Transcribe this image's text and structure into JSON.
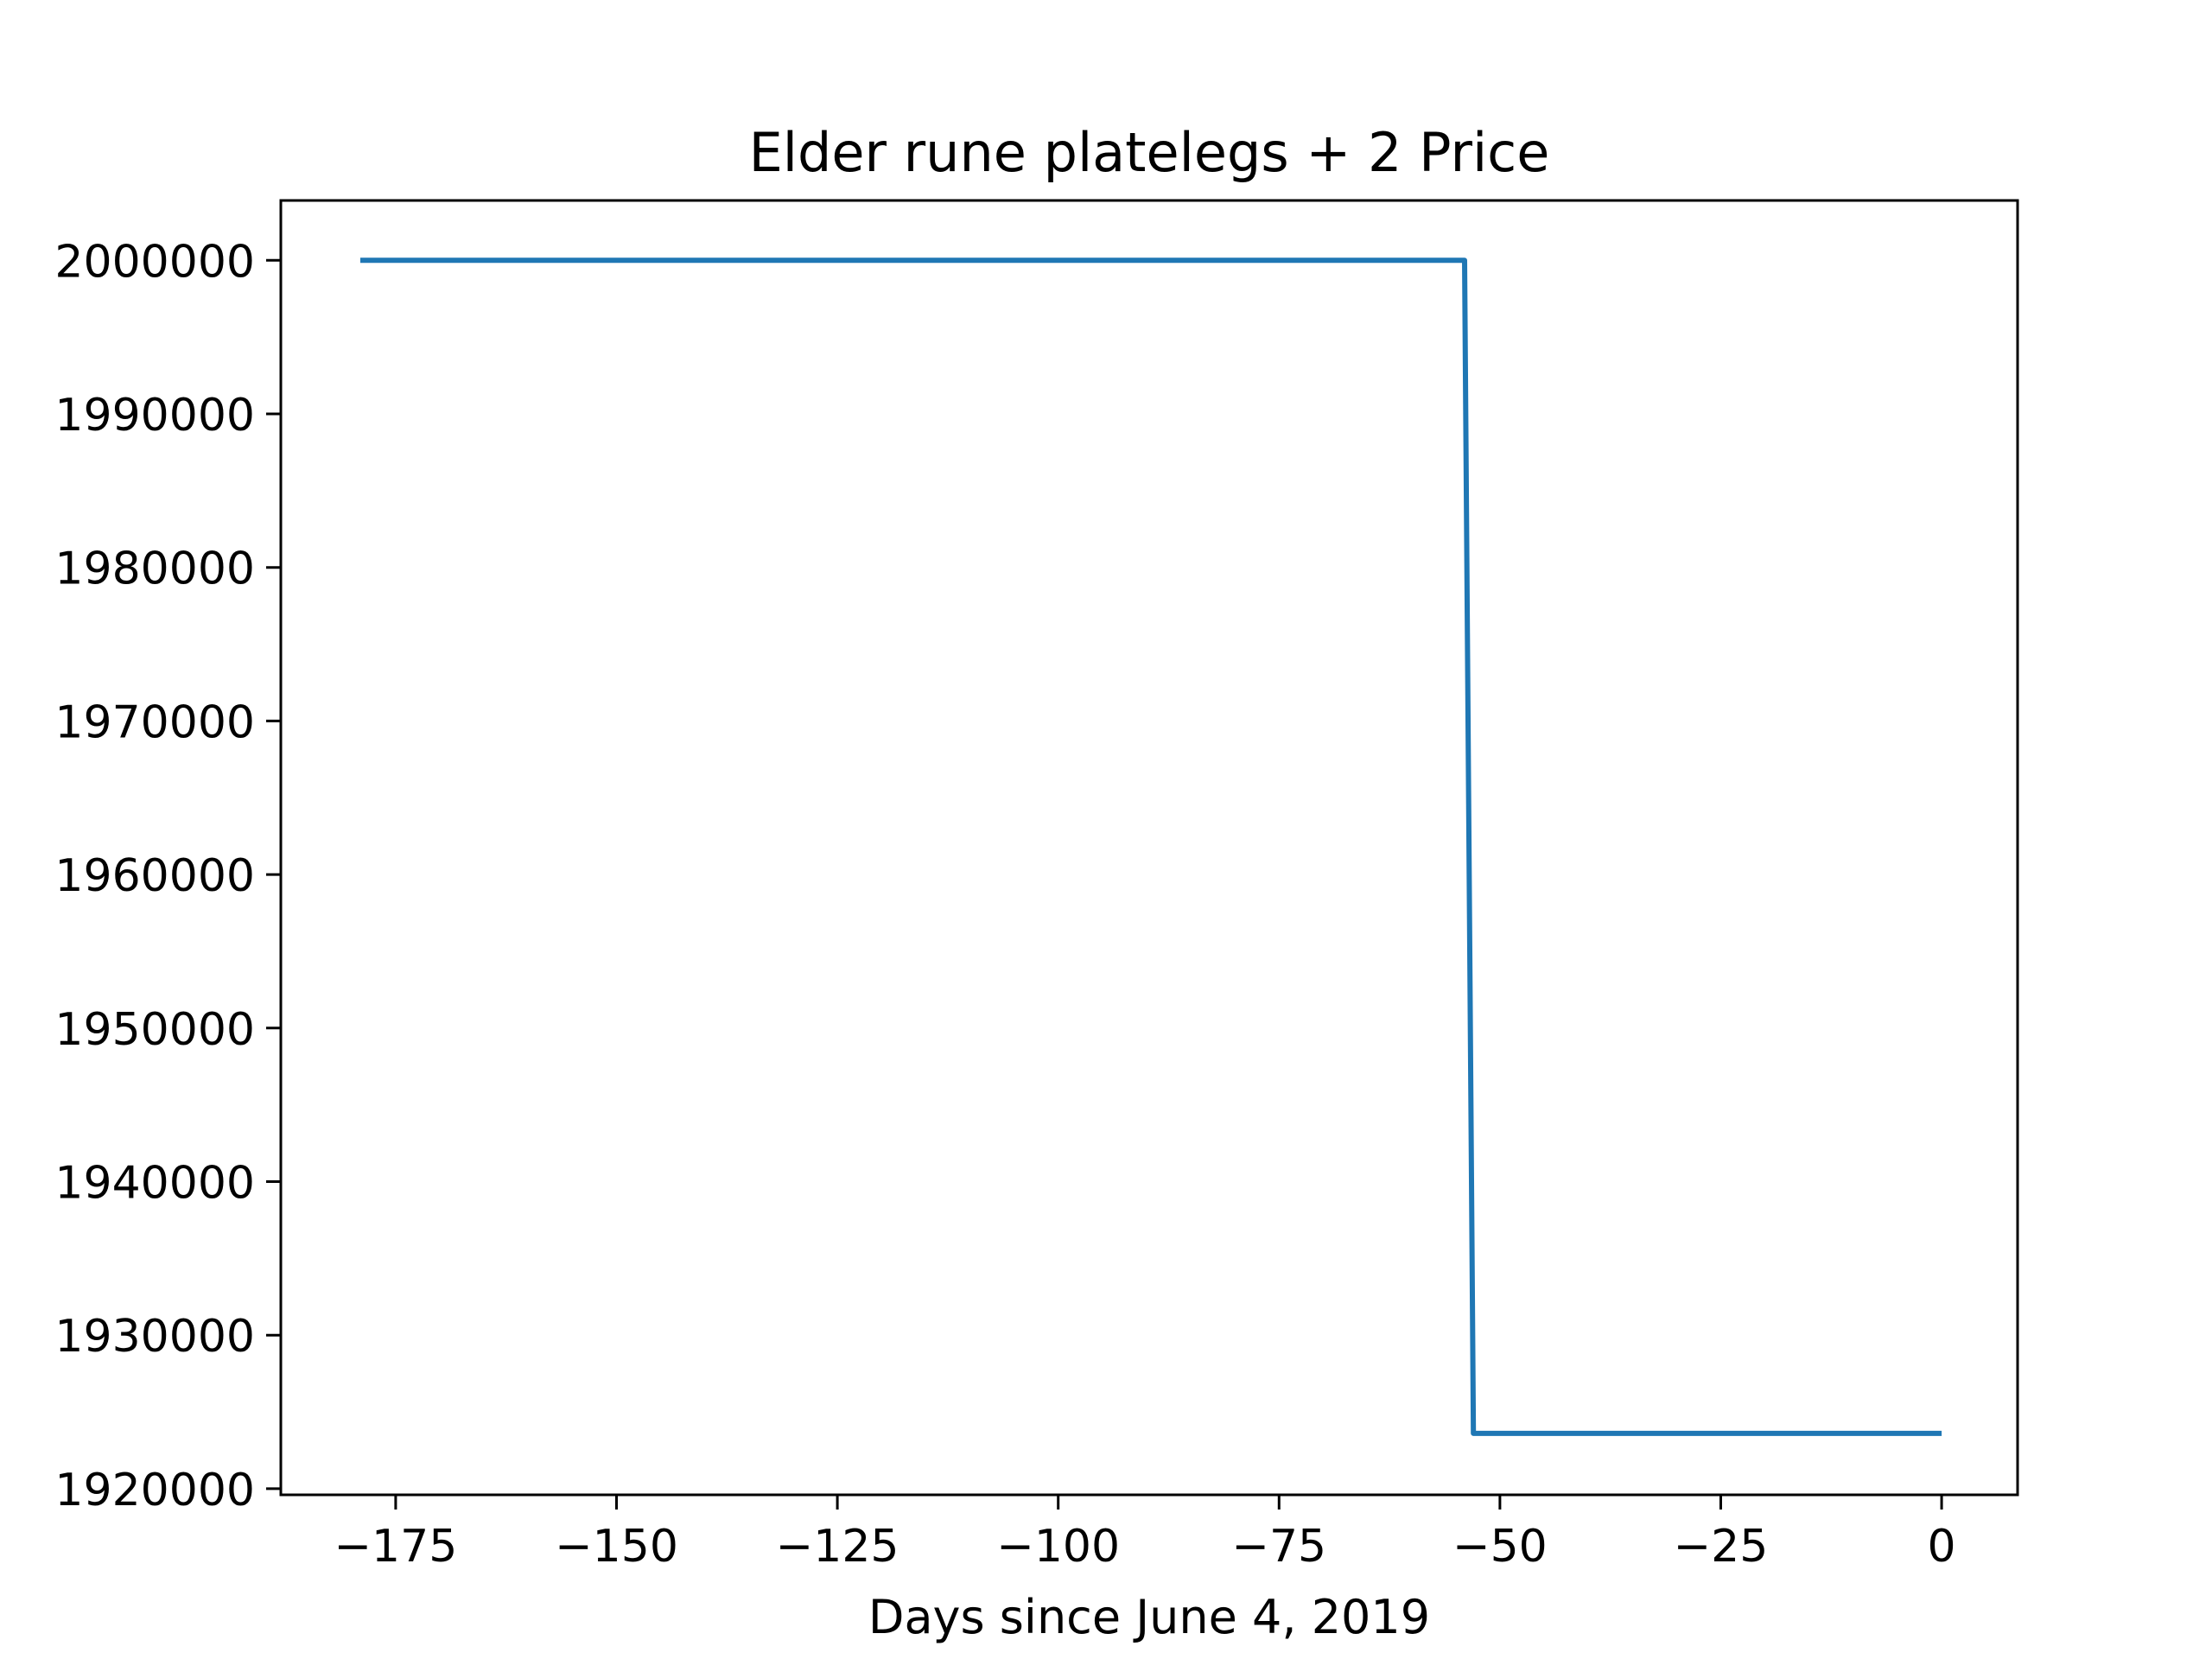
{
  "chart_data": {
    "type": "line",
    "title": "Elder rune platelegs + 2 Price",
    "xlabel": "Days since June 4, 2019",
    "ylabel": "",
    "xlim": [
      -188,
      8.6
    ],
    "ylim": [
      1919600,
      2003900
    ],
    "grid": false,
    "x_ticks": [
      -175,
      -150,
      -125,
      -100,
      -75,
      -50,
      -25,
      0
    ],
    "x_tick_labels": [
      "−175",
      "−150",
      "−125",
      "−100",
      "−75",
      "−50",
      "−25",
      "0"
    ],
    "y_ticks": [
      1920000,
      1930000,
      1940000,
      1950000,
      1960000,
      1970000,
      1980000,
      1990000,
      2000000
    ],
    "y_tick_labels": [
      "1920000",
      "1930000",
      "1940000",
      "1950000",
      "1960000",
      "1970000",
      "1980000",
      "1990000",
      "2000000"
    ],
    "series": [
      {
        "color": "#1f77b4",
        "x": [
          -179,
          -54,
          -53,
          0
        ],
        "y": [
          2000000,
          2000000,
          1923600,
          1923600
        ]
      }
    ]
  }
}
